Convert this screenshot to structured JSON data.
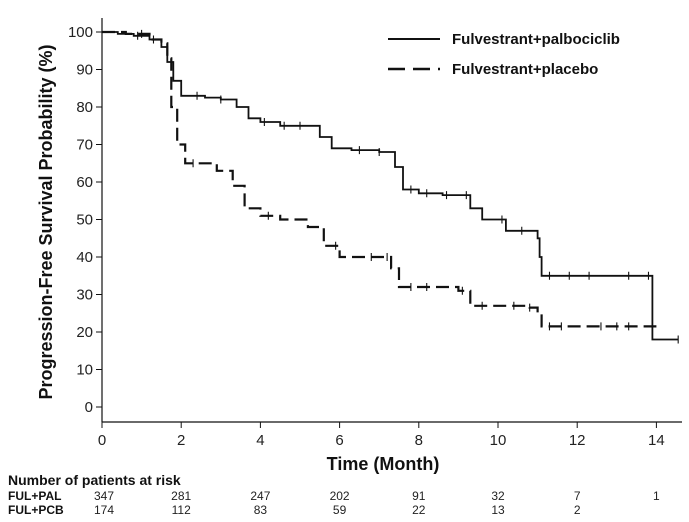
{
  "chart_data": {
    "type": "line",
    "subtype": "kaplan-meier",
    "xlabel": "Time (Month)",
    "ylabel": "Progression-Free Survival Probability (%)",
    "xlim": [
      0,
      15
    ],
    "ylim": [
      0,
      100
    ],
    "xticks": [
      "0",
      "2",
      "4",
      "6",
      "8",
      "10",
      "12",
      "14"
    ],
    "yticks": [
      "0",
      "10",
      "20",
      "30",
      "40",
      "50",
      "60",
      "70",
      "80",
      "90",
      "100"
    ],
    "grid": false,
    "legend_position": "top-right",
    "series": [
      {
        "name": "Fulvestrant+palbociclib",
        "style": "solid",
        "color": "#111111",
        "x": [
          0,
          0.4,
          0.8,
          1.2,
          1.5,
          1.65,
          1.8,
          2.0,
          2.6,
          3.0,
          3.4,
          3.7,
          4.0,
          4.5,
          5.2,
          5.5,
          5.8,
          6.3,
          7.0,
          7.4,
          7.6,
          8.0,
          8.6,
          9.3,
          9.6,
          10.2,
          11.0,
          11.05,
          11.1,
          12.0,
          13.0,
          13.85,
          13.9,
          14.55
        ],
        "y": [
          100,
          99.5,
          99,
          98,
          96,
          92,
          87,
          83,
          82.5,
          82,
          80,
          77,
          76,
          75,
          75,
          72,
          69,
          68.5,
          68,
          64,
          58,
          57,
          56.5,
          53,
          50,
          47,
          45,
          40,
          35,
          35,
          35,
          35,
          18,
          18
        ],
        "censor_x": [
          0.9,
          1.3,
          2.4,
          3.0,
          4.1,
          4.6,
          5.0,
          6.5,
          7.0,
          7.8,
          8.2,
          8.7,
          9.2,
          10.1,
          10.6,
          11.3,
          11.8,
          12.3,
          13.3,
          13.8,
          14.55
        ]
      },
      {
        "name": "Fulvestrant+placebo",
        "style": "dashed",
        "color": "#111111",
        "x": [
          0,
          0.6,
          1.2,
          1.5,
          1.65,
          1.75,
          1.9,
          2.1,
          2.9,
          3.3,
          3.6,
          4.0,
          4.5,
          5.2,
          5.6,
          6.0,
          7.0,
          7.3,
          7.5,
          8.0,
          9.0,
          9.3,
          10.0,
          10.8,
          11.0,
          11.1,
          12.0,
          13.0,
          14.0
        ],
        "y": [
          100,
          99.5,
          98,
          97,
          93,
          80,
          70,
          65,
          63,
          59,
          53,
          51,
          50,
          48,
          43,
          40,
          40,
          37,
          32,
          32,
          31,
          27,
          27,
          26.5,
          25,
          21.5,
          21.5,
          21.5,
          21.5
        ],
        "censor_x": [
          1.0,
          2.3,
          4.2,
          5.9,
          6.8,
          7.2,
          7.8,
          8.2,
          9.1,
          9.6,
          10.4,
          10.8,
          11.3,
          11.6,
          12.6,
          13.0,
          13.3
        ]
      }
    ],
    "at_risk": {
      "title": "Number of patients at risk",
      "times": [
        0,
        2,
        4,
        6,
        8,
        10,
        12,
        14
      ],
      "rows": [
        {
          "label": "FUL+PAL",
          "values": [
            "347",
            "281",
            "247",
            "202",
            "91",
            "32",
            "7",
            "1"
          ]
        },
        {
          "label": "FUL+PCB",
          "values": [
            "174",
            "112",
            "83",
            "59",
            "22",
            "13",
            "2",
            ""
          ]
        }
      ]
    }
  }
}
